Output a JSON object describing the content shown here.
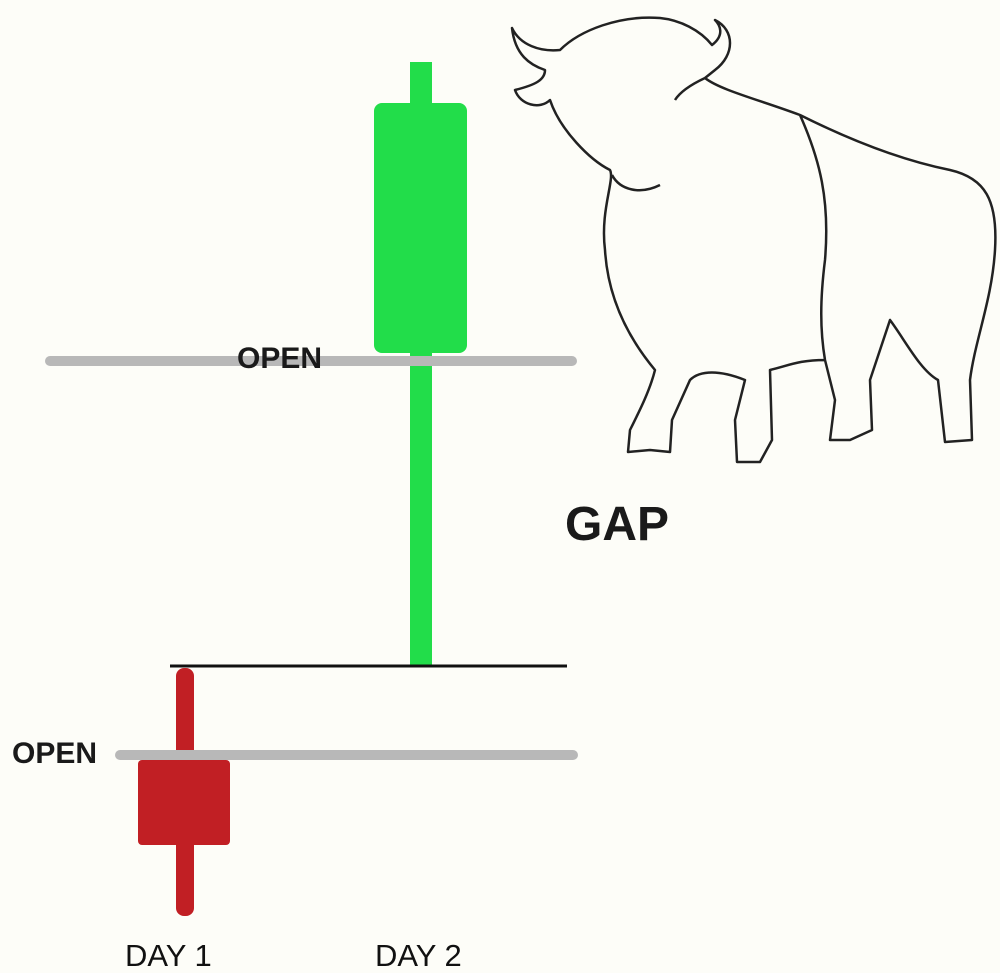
{
  "candles": [
    {
      "label": "DAY 1",
      "open_label": "OPEN"
    },
    {
      "label": "DAY 2",
      "open_label": "OPEN"
    }
  ],
  "gap_label": "GAP"
}
